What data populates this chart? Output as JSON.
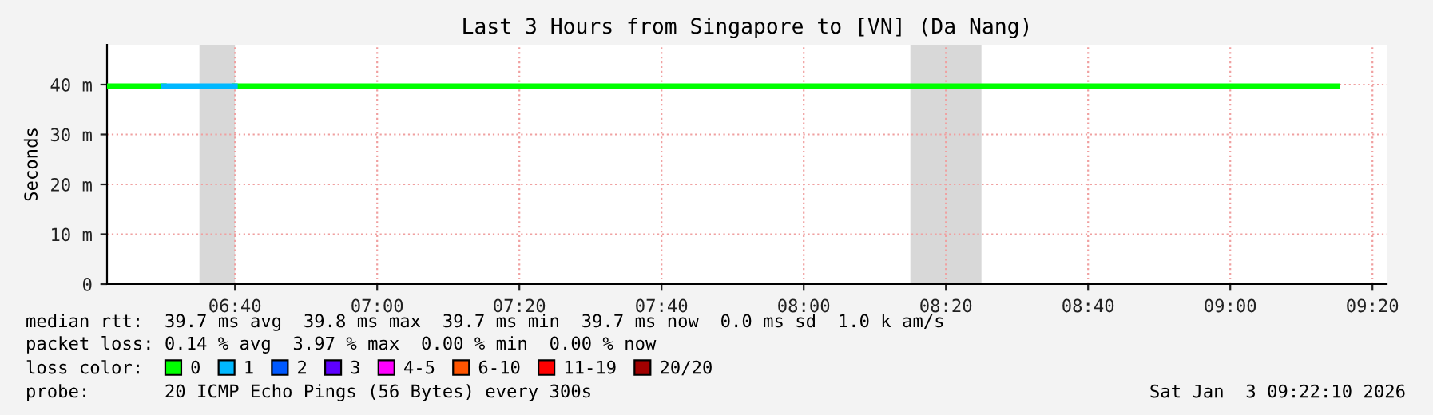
{
  "chart_data": {
    "type": "line",
    "title": "Last 3 Hours from Singapore to [VN] (Da Nang)",
    "ylabel": "Seconds",
    "series": [
      {
        "name": "0",
        "color": "#00ff00",
        "x": [
          "2026-01-03T06:22",
          "2026-01-03T06:30",
          "2026-01-03T06:35",
          "2026-01-03T06:40",
          "2026-01-03T09:15"
        ],
        "values": [
          39.7,
          39.7,
          null,
          39.7,
          39.7
        ]
      },
      {
        "name": "1",
        "color": "#00b8ff",
        "x": [
          "2026-01-03T06:30",
          "2026-01-03T06:40"
        ],
        "values": [
          39.7,
          39.7
        ]
      },
      {
        "name": "2",
        "color": "#0059ff"
      },
      {
        "name": "3",
        "color": "#5e00ff"
      },
      {
        "name": "4-5",
        "color": "#ff00ff"
      },
      {
        "name": "6-10",
        "color": "#ff5500"
      },
      {
        "name": "11-19",
        "color": "#ff0000"
      },
      {
        "name": "20/20",
        "color": "#a10000"
      }
    ],
    "bands": [
      {
        "axis": "x",
        "from": "2026-01-03T06:35",
        "to": "2026-01-03T06:40",
        "color": "#d8d8d8"
      },
      {
        "axis": "x",
        "from": "2026-01-03T08:15",
        "to": "2026-01-03T08:25",
        "color": "#d8d8d8"
      }
    ],
    "xlim": [
      "2026-01-03T06:22",
      "2026-01-03T09:22"
    ],
    "xticks": [
      {
        "value": "2026-01-03T06:40",
        "label": "06:40"
      },
      {
        "value": "2026-01-03T07:00",
        "label": "07:00"
      },
      {
        "value": "2026-01-03T07:20",
        "label": "07:20"
      },
      {
        "value": "2026-01-03T07:40",
        "label": "07:40"
      },
      {
        "value": "2026-01-03T08:00",
        "label": "08:00"
      },
      {
        "value": "2026-01-03T08:20",
        "label": "08:20"
      },
      {
        "value": "2026-01-03T08:40",
        "label": "08:40"
      },
      {
        "value": "2026-01-03T09:00",
        "label": "09:00"
      },
      {
        "value": "2026-01-03T09:20",
        "label": "09:20"
      }
    ],
    "ylim": [
      0,
      48
    ],
    "yticks": [
      0,
      {
        "value": 10,
        "label": "10 m"
      },
      {
        "value": 20,
        "label": "20 m"
      },
      {
        "value": 30,
        "label": "30 m"
      },
      {
        "value": 40,
        "label": "40 m"
      }
    ],
    "grid": true,
    "legend": "bottom",
    "legend_title": "loss color:",
    "marker": "none",
    "line_style": "solid",
    "annotations": [
      "median rtt:  39.7 ms avg  39.8 ms max  39.7 ms min  39.7 ms now  0.0 ms sd  1.0 k am/s",
      "packet loss: 0.14 % avg  3.97 % max  0.00 % min  0.00 % now",
      "probe:       20 ICMP Echo Pings (56 Bytes) every 300s",
      "Sat Jan  3 09:22:10 2026"
    ]
  }
}
